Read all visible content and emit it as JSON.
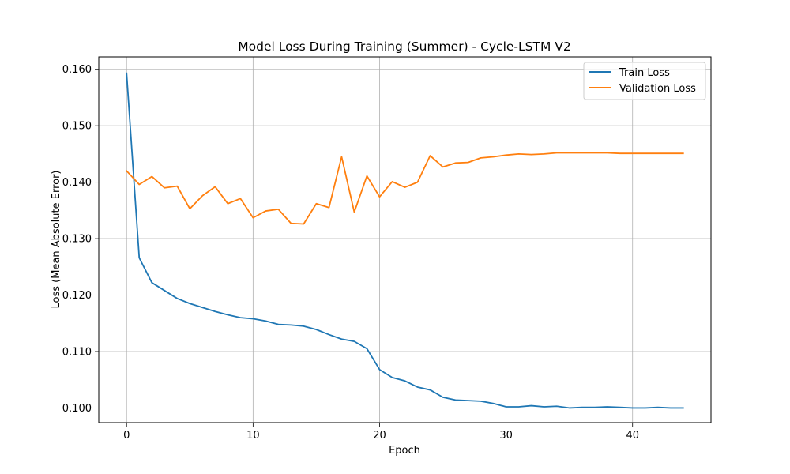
{
  "chart_data": {
    "type": "line",
    "title": "Model Loss During Training (Summer) - Cycle-LSTM V2",
    "xlabel": "Epoch",
    "ylabel": "Loss (Mean Absolute Error)",
    "xlim": [
      -2.2,
      46.2
    ],
    "ylim": [
      0.0974,
      0.1622
    ],
    "xticks": [
      0,
      10,
      20,
      30,
      40
    ],
    "yticks": [
      0.1,
      0.11,
      0.12,
      0.13,
      0.14,
      0.15,
      0.16
    ],
    "ytick_labels": [
      "0.100",
      "0.110",
      "0.120",
      "0.130",
      "0.140",
      "0.150",
      "0.160"
    ],
    "grid": true,
    "legend_position": "top-right",
    "x": [
      0,
      1,
      2,
      3,
      4,
      5,
      6,
      7,
      8,
      9,
      10,
      11,
      12,
      13,
      14,
      15,
      16,
      17,
      18,
      19,
      20,
      21,
      22,
      23,
      24,
      25,
      26,
      27,
      28,
      29,
      30,
      31,
      32,
      33,
      34,
      35,
      36,
      37,
      38,
      39,
      40,
      41,
      42,
      43,
      44
    ],
    "series": [
      {
        "name": "Train Loss",
        "color": "#1f77b4",
        "values": [
          0.1593,
          0.1266,
          0.1222,
          0.1208,
          0.1194,
          0.1185,
          0.1178,
          0.1171,
          0.1165,
          0.116,
          0.1158,
          0.1154,
          0.1148,
          0.1147,
          0.1145,
          0.1139,
          0.113,
          0.1122,
          0.1118,
          0.1105,
          0.1068,
          0.1054,
          0.1048,
          0.1037,
          0.1032,
          0.1019,
          0.1014,
          0.1013,
          0.1012,
          0.1008,
          0.1002,
          0.1002,
          0.1004,
          0.1002,
          0.1003,
          0.1,
          0.1001,
          0.1001,
          0.1002,
          0.1001,
          0.1,
          0.1,
          0.1001,
          0.1,
          0.1
        ]
      },
      {
        "name": "Validation Loss",
        "color": "#ff7f0e",
        "values": [
          0.142,
          0.1396,
          0.141,
          0.139,
          0.1393,
          0.1353,
          0.1376,
          0.1392,
          0.1362,
          0.1371,
          0.1337,
          0.1349,
          0.1352,
          0.1327,
          0.1326,
          0.1362,
          0.1355,
          0.1445,
          0.1347,
          0.1411,
          0.1374,
          0.1401,
          0.1391,
          0.14,
          0.1447,
          0.1427,
          0.1434,
          0.1435,
          0.1443,
          0.1445,
          0.1448,
          0.145,
          0.1449,
          0.145,
          0.1452,
          0.1452,
          0.1452,
          0.1452,
          0.1452,
          0.1451,
          0.1451,
          0.1451,
          0.1451,
          0.1451,
          0.1451
        ]
      }
    ]
  }
}
